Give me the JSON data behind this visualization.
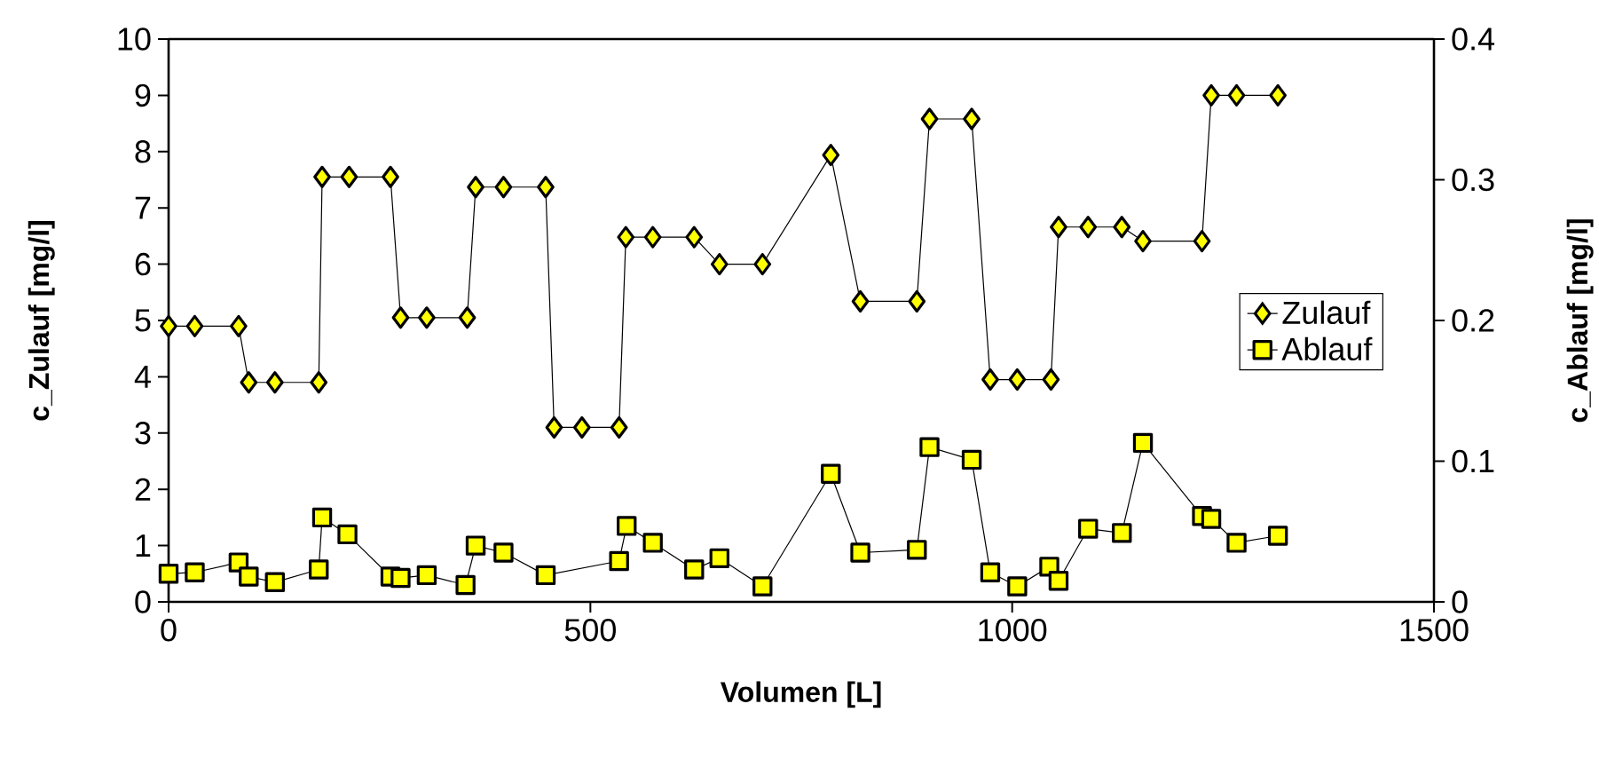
{
  "chart_data": {
    "type": "line",
    "xlabel": "Volumen  [L]",
    "ylabel": "c_Zulauf [mg/l]",
    "y2label": "c_Ablauf [mg/l]",
    "xlim": [
      0,
      1500
    ],
    "xticks": [
      0,
      500,
      1000,
      1500
    ],
    "ylim": [
      0,
      10
    ],
    "yticks": [
      0,
      1,
      2,
      3,
      4,
      5,
      6,
      7,
      8,
      9,
      10
    ],
    "y2lim": [
      0,
      0.4
    ],
    "y2ticks": [
      0,
      0.1,
      0.2,
      0.3,
      0.4
    ],
    "legend": "right",
    "grid": false,
    "line_style": "solid",
    "series": [
      {
        "name": "Zulauf",
        "color": "#ffff00",
        "marker": "diamond",
        "x": [
          0,
          31,
          83,
          95,
          126,
          178,
          182,
          214,
          263,
          275,
          306,
          354,
          364,
          397,
          447,
          457,
          490,
          534,
          542,
          574,
          623,
          653,
          704,
          785,
          820,
          887,
          902,
          952,
          974,
          1006,
          1046,
          1055,
          1090,
          1130,
          1155,
          1225,
          1236,
          1266,
          1315
        ],
        "values": [
          4.9,
          4.9,
          4.9,
          3.9,
          3.9,
          3.9,
          7.55,
          7.55,
          7.55,
          5.05,
          5.05,
          5.05,
          7.37,
          7.37,
          7.37,
          3.1,
          3.1,
          3.1,
          6.48,
          6.48,
          6.48,
          6.0,
          6.0,
          7.94,
          5.34,
          5.34,
          8.58,
          8.58,
          3.95,
          3.95,
          3.95,
          6.66,
          6.66,
          6.66,
          6.41,
          6.41,
          9.0,
          9.0,
          9.0
        ]
      },
      {
        "name": "Ablauf",
        "color": "#ffff00",
        "marker": "square",
        "axis": "y2",
        "x": [
          0,
          31,
          83,
          95,
          126,
          178,
          182,
          212,
          263,
          275,
          306,
          352,
          364,
          397,
          447,
          534,
          543,
          574,
          623,
          653,
          704,
          785,
          820,
          887,
          902,
          952,
          974,
          1006,
          1044,
          1055,
          1090,
          1130,
          1155,
          1225,
          1236,
          1266,
          1315
        ],
        "values": [
          0.02,
          0.021,
          0.028,
          0.018,
          0.014,
          0.023,
          0.06,
          0.048,
          0.018,
          0.017,
          0.019,
          0.012,
          0.04,
          0.035,
          0.019,
          0.029,
          0.054,
          0.042,
          0.023,
          0.031,
          0.011,
          0.091,
          0.035,
          0.037,
          0.11,
          0.101,
          0.021,
          0.011,
          0.025,
          0.015,
          0.052,
          0.049,
          0.113,
          0.061,
          0.059,
          0.042,
          0.047
        ]
      }
    ]
  }
}
